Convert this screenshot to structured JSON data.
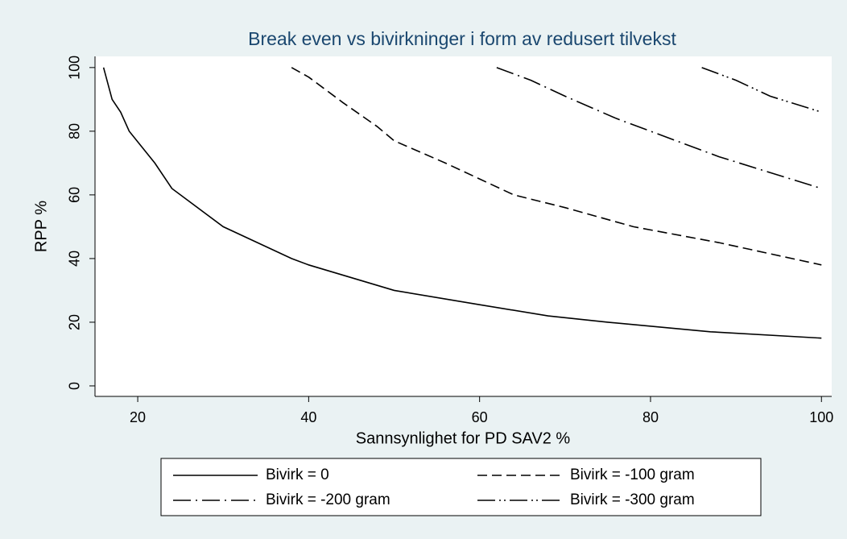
{
  "chart_data": {
    "type": "line",
    "title": "Break even vs bivirkninger i form av redusert tilvekst",
    "x_label": "Sannsynlighet for PD SAV2 %",
    "y_label": "RPP %",
    "xlim": [
      15,
      101.2
    ],
    "ylim": [
      -3.3,
      103.5
    ],
    "xticks": [
      20,
      40,
      60,
      80,
      100
    ],
    "yticks": [
      0,
      20,
      40,
      60,
      80,
      100
    ],
    "legend": "bottom",
    "series": [
      {
        "name": "Bivirk = 0",
        "color": "#000000",
        "dash": "none",
        "x": [
          16,
          17,
          18,
          19,
          22,
          24,
          30,
          38,
          40,
          50,
          60,
          68,
          75,
          87,
          100
        ],
        "values": [
          100,
          90,
          86,
          80,
          70,
          62,
          50,
          40,
          38,
          30,
          25.5,
          22,
          20,
          17,
          15
        ]
      },
      {
        "name": "Bivirk = -100 gram",
        "color": "#000000",
        "dash": "12 6",
        "x": [
          38,
          40,
          44,
          48,
          50,
          56,
          60,
          64,
          70,
          78,
          88,
          100
        ],
        "values": [
          100,
          97,
          89,
          81.5,
          77,
          70,
          65,
          60,
          56,
          50,
          45,
          38
        ]
      },
      {
        "name": "Bivirk = -200 gram",
        "color": "#000000",
        "dash": "22 6 2 6",
        "x": [
          62,
          66,
          70,
          76,
          80,
          88,
          100
        ],
        "values": [
          100,
          96,
          91,
          84,
          80,
          72,
          62
        ]
      },
      {
        "name": "Bivirk = -300 gram",
        "color": "#000000",
        "dash": "22 5 2 4 2 5",
        "x": [
          86,
          90,
          94,
          100
        ],
        "values": [
          100,
          96,
          91,
          86
        ]
      }
    ]
  }
}
